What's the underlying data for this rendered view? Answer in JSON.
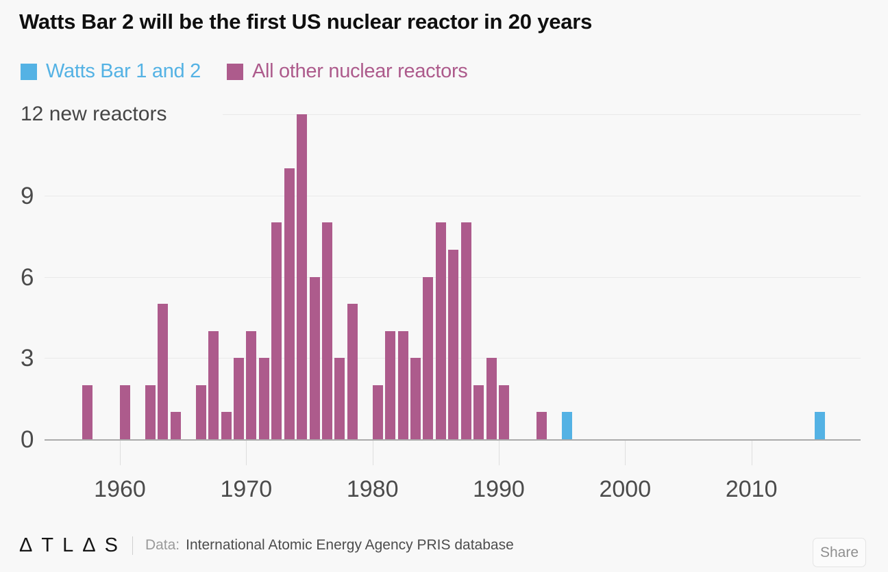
{
  "header": {
    "title": "Watts Bar 2 will be the first US nuclear reactor in 20 years"
  },
  "legend": {
    "items": [
      {
        "label": "Watts Bar 1 and 2",
        "color": "#54b2e4"
      },
      {
        "label": "All other nuclear reactors",
        "color": "#ad5b8c"
      }
    ]
  },
  "chart_data": {
    "type": "bar",
    "title": "Watts Bar 2 will be the first US nuclear reactor in 20 years",
    "ylabel_top": "12 new reactors",
    "ylim": [
      0,
      12
    ],
    "yticks": [
      0,
      3,
      6,
      9,
      12
    ],
    "xticks": [
      1960,
      1970,
      1980,
      1990,
      2000,
      2010
    ],
    "grid": true,
    "legend_position": "top",
    "series": [
      {
        "name": "Watts Bar 1 and 2",
        "color": "#54b2e4",
        "points": [
          [
            1995,
            1
          ],
          [
            2015,
            1
          ]
        ]
      },
      {
        "name": "All other nuclear reactors",
        "color": "#ad5b8c",
        "points": [
          [
            1957,
            2
          ],
          [
            1960,
            2
          ],
          [
            1962,
            2
          ],
          [
            1963,
            5
          ],
          [
            1964,
            1
          ],
          [
            1966,
            2
          ],
          [
            1967,
            4
          ],
          [
            1968,
            1
          ],
          [
            1969,
            3
          ],
          [
            1970,
            4
          ],
          [
            1971,
            3
          ],
          [
            1972,
            8
          ],
          [
            1973,
            10
          ],
          [
            1974,
            12
          ],
          [
            1975,
            6
          ],
          [
            1976,
            8
          ],
          [
            1977,
            3
          ],
          [
            1978,
            5
          ],
          [
            1980,
            2
          ],
          [
            1981,
            4
          ],
          [
            1982,
            4
          ],
          [
            1983,
            3
          ],
          [
            1984,
            6
          ],
          [
            1985,
            8
          ],
          [
            1986,
            7
          ],
          [
            1987,
            8
          ],
          [
            1988,
            2
          ],
          [
            1989,
            3
          ],
          [
            1990,
            2
          ],
          [
            1993,
            1
          ]
        ]
      }
    ]
  },
  "footer": {
    "logo": "ΔTLΔS",
    "data_label": "Data:",
    "source": "International Atomic Energy Agency PRIS database",
    "share_label": "Share"
  },
  "colors": {
    "background": "#f8f8f8",
    "blue": "#54b2e4",
    "magenta": "#ad5b8c",
    "axis_text": "#4b4b4b",
    "gridline": "#e9e9e9",
    "baseline": "#ababab"
  }
}
